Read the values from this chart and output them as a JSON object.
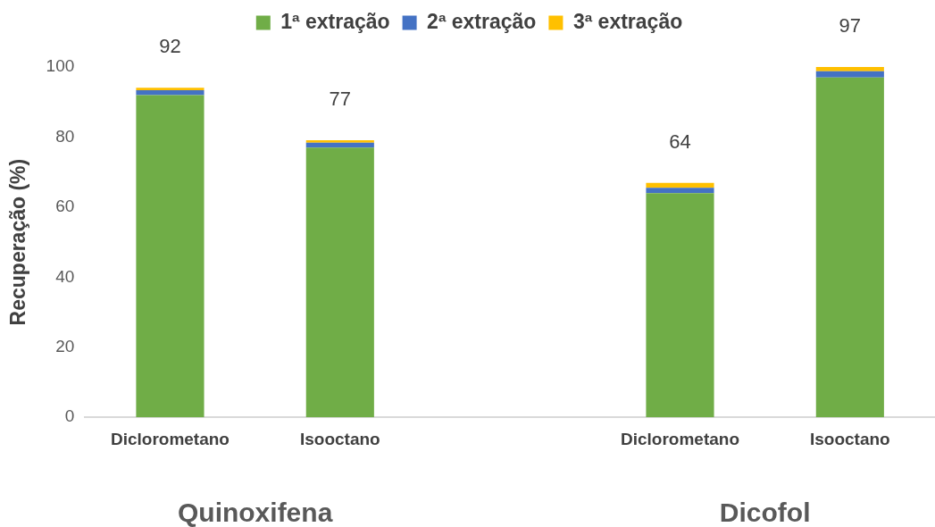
{
  "chart_data": {
    "type": "bar",
    "stacked": true,
    "ylabel": "Recuperação (%)",
    "categories": [
      "Diclorometano",
      "Isooctano",
      null,
      "Diclorometano",
      "Isooctano"
    ],
    "series": [
      {
        "name": "1ª extração",
        "color": "#70ad47",
        "values": [
          92,
          77,
          null,
          64,
          97
        ],
        "value_labels": [
          "92",
          "77",
          null,
          "64",
          "97"
        ]
      },
      {
        "name": "2ª extração",
        "color": "#4472c4",
        "values": [
          1.4,
          1.4,
          null,
          1.5,
          1.8
        ]
      },
      {
        "name": "3ª extração",
        "color": "#ffc000",
        "values": [
          0.7,
          0.7,
          null,
          1.4,
          1.2
        ]
      }
    ],
    "ylim": [
      0,
      100
    ],
    "yticks": [
      0,
      20,
      40,
      60,
      80,
      100
    ],
    "grid": false,
    "legend": "top",
    "annotations": [
      "Quinoxifena",
      "Dicofol"
    ]
  }
}
